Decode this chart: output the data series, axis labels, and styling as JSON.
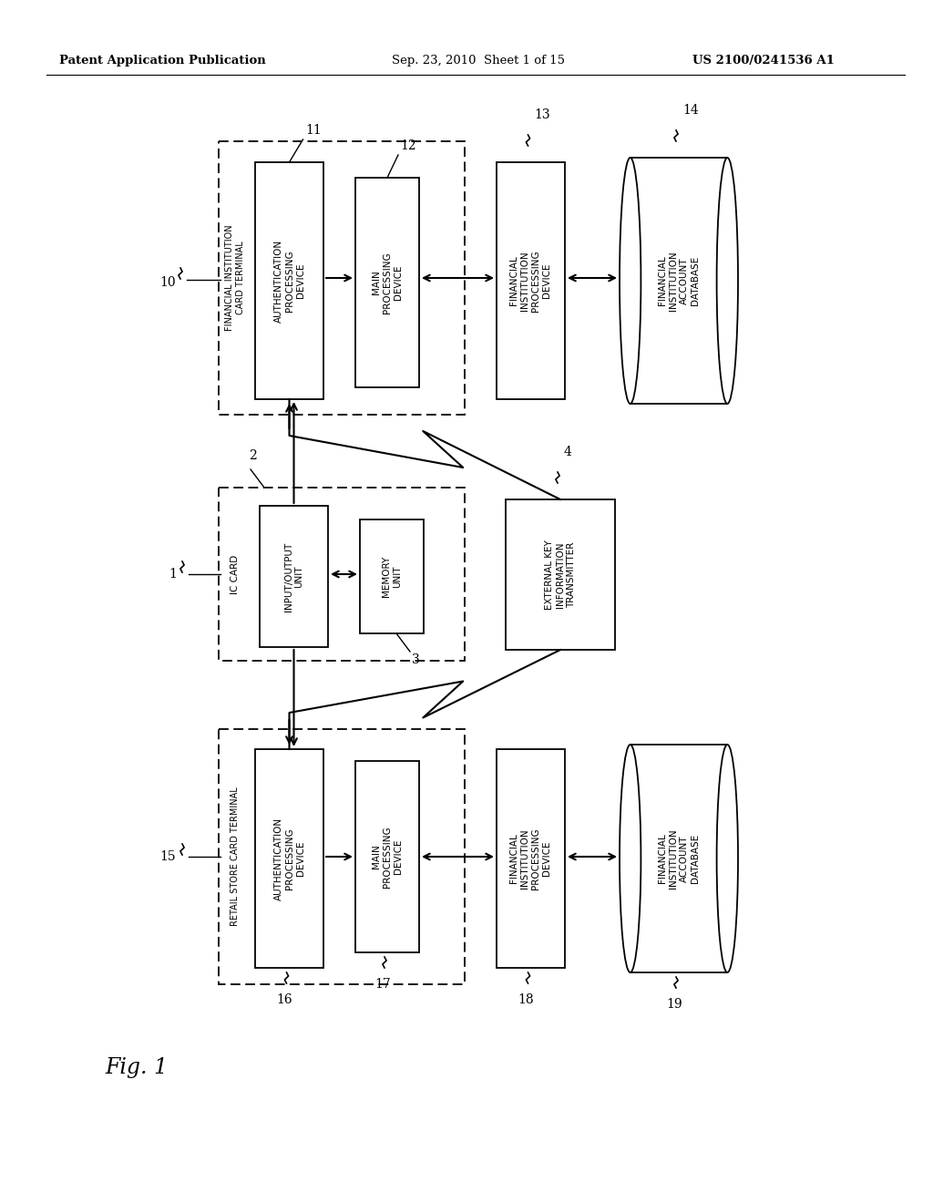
{
  "header_left": "Patent Application Publication",
  "header_mid": "Sep. 23, 2010  Sheet 1 of 15",
  "header_right": "US 2100/0241536 A1",
  "fig_label": "Fig. 1",
  "bg_color": "#ffffff"
}
